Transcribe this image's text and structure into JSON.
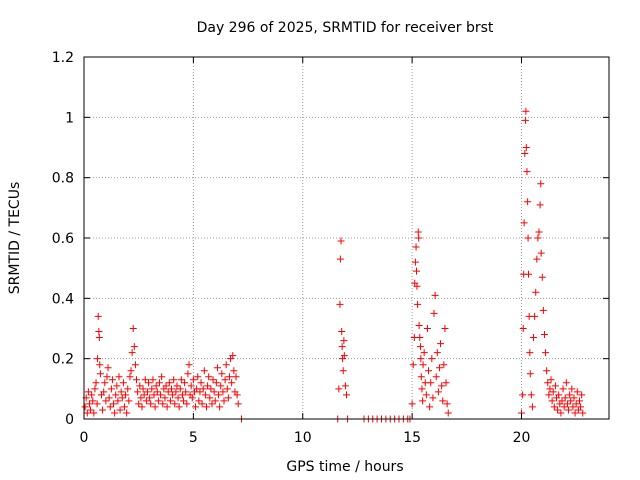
{
  "chart_data": {
    "type": "scatter",
    "title": "Day 296 of 2025, SRMTID for receiver brst",
    "xlabel": "GPS time / hours",
    "ylabel": "SRMTID / TECUs",
    "xlim": [
      0,
      24
    ],
    "ylim": [
      0,
      1.2
    ],
    "xticks": [
      0,
      5,
      10,
      15,
      20
    ],
    "xtick_labels": [
      "0",
      "5",
      "10",
      "15",
      "20"
    ],
    "yticks": [
      0,
      0.2,
      0.4,
      0.6,
      0.8,
      1,
      1.2
    ],
    "ytick_labels": [
      "0",
      "0.2",
      "0.4",
      "0.6",
      "0.8",
      "1",
      "1.2"
    ],
    "grid": true,
    "marker": "+",
    "series": [
      {
        "name": "SRMTID",
        "color": "#ff0000",
        "points": [
          [
            0.05,
            0.04
          ],
          [
            0.1,
            0.07
          ],
          [
            0.15,
            0.02
          ],
          [
            0.2,
            0.09
          ],
          [
            0.25,
            0.05
          ],
          [
            0.3,
            0.03
          ],
          [
            0.35,
            0.08
          ],
          [
            0.4,
            0.06
          ],
          [
            0.45,
            0.02
          ],
          [
            0.5,
            0.1
          ],
          [
            0.55,
            0.12
          ],
          [
            0.6,
            0.05
          ],
          [
            0.62,
            0.2
          ],
          [
            0.65,
            0.34
          ],
          [
            0.68,
            0.29
          ],
          [
            0.7,
            0.27
          ],
          [
            0.72,
            0.18
          ],
          [
            0.75,
            0.15
          ],
          [
            0.8,
            0.08
          ],
          [
            0.85,
            0.03
          ],
          [
            0.9,
            0.09
          ],
          [
            0.95,
            0.12
          ],
          [
            1.0,
            0.06
          ],
          [
            1.05,
            0.14
          ],
          [
            1.1,
            0.17
          ],
          [
            1.15,
            0.07
          ],
          [
            1.2,
            0.04
          ],
          [
            1.25,
            0.1
          ],
          [
            1.3,
            0.13
          ],
          [
            1.35,
            0.05
          ],
          [
            1.4,
            0.02
          ],
          [
            1.45,
            0.08
          ],
          [
            1.5,
            0.11
          ],
          [
            1.55,
            0.06
          ],
          [
            1.6,
            0.14
          ],
          [
            1.65,
            0.03
          ],
          [
            1.7,
            0.09
          ],
          [
            1.75,
            0.07
          ],
          [
            1.8,
            0.12
          ],
          [
            1.85,
            0.04
          ],
          [
            1.9,
            0.08
          ],
          [
            1.95,
            0.02
          ],
          [
            2.0,
            0.1
          ],
          [
            2.05,
            0.06
          ],
          [
            2.1,
            0.14
          ],
          [
            2.15,
            0.16
          ],
          [
            2.2,
            0.22
          ],
          [
            2.25,
            0.3
          ],
          [
            2.3,
            0.24
          ],
          [
            2.35,
            0.18
          ],
          [
            2.4,
            0.13
          ],
          [
            2.45,
            0.09
          ],
          [
            2.5,
            0.05
          ],
          [
            2.55,
            0.11
          ],
          [
            2.6,
            0.07
          ],
          [
            2.65,
            0.04
          ],
          [
            2.7,
            0.1
          ],
          [
            2.75,
            0.08
          ],
          [
            2.8,
            0.13
          ],
          [
            2.85,
            0.06
          ],
          [
            2.9,
            0.09
          ],
          [
            2.95,
            0.12
          ],
          [
            3.0,
            0.07
          ],
          [
            3.05,
            0.05
          ],
          [
            3.1,
            0.1
          ],
          [
            3.15,
            0.13
          ],
          [
            3.2,
            0.08
          ],
          [
            3.25,
            0.04
          ],
          [
            3.3,
            0.11
          ],
          [
            3.35,
            0.09
          ],
          [
            3.4,
            0.06
          ],
          [
            3.45,
            0.12
          ],
          [
            3.5,
            0.08
          ],
          [
            3.55,
            0.14
          ],
          [
            3.6,
            0.05
          ],
          [
            3.65,
            0.1
          ],
          [
            3.7,
            0.07
          ],
          [
            3.75,
            0.11
          ],
          [
            3.8,
            0.04
          ],
          [
            3.85,
            0.09
          ],
          [
            3.9,
            0.12
          ],
          [
            3.95,
            0.06
          ],
          [
            4.0,
            0.1
          ],
          [
            4.05,
            0.08
          ],
          [
            4.1,
            0.13
          ],
          [
            4.15,
            0.05
          ],
          [
            4.2,
            0.09
          ],
          [
            4.25,
            0.11
          ],
          [
            4.3,
            0.07
          ],
          [
            4.35,
            0.04
          ],
          [
            4.4,
            0.1
          ],
          [
            4.45,
            0.13
          ],
          [
            4.5,
            0.08
          ],
          [
            4.55,
            0.06
          ],
          [
            4.6,
            0.12
          ],
          [
            4.65,
            0.09
          ],
          [
            4.7,
            0.05
          ],
          [
            4.75,
            0.15
          ],
          [
            4.8,
            0.18
          ],
          [
            4.85,
            0.08
          ],
          [
            4.9,
            0.11
          ],
          [
            4.95,
            0.07
          ],
          [
            5.0,
            0.13
          ],
          [
            5.05,
            0.09
          ],
          [
            5.1,
            0.04
          ],
          [
            5.15,
            0.1
          ],
          [
            5.2,
            0.14
          ],
          [
            5.25,
            0.06
          ],
          [
            5.3,
            0.09
          ],
          [
            5.35,
            0.12
          ],
          [
            5.4,
            0.05
          ],
          [
            5.45,
            0.1
          ],
          [
            5.5,
            0.16
          ],
          [
            5.55,
            0.08
          ],
          [
            5.6,
            0.04
          ],
          [
            5.65,
            0.11
          ],
          [
            5.7,
            0.14
          ],
          [
            5.75,
            0.07
          ],
          [
            5.8,
            0.1
          ],
          [
            5.85,
            0.05
          ],
          [
            5.9,
            0.13
          ],
          [
            5.95,
            0.09
          ],
          [
            6.0,
            0.06
          ],
          [
            6.05,
            0.12
          ],
          [
            6.1,
            0.17
          ],
          [
            6.15,
            0.08
          ],
          [
            6.2,
            0.04
          ],
          [
            6.25,
            0.11
          ],
          [
            6.3,
            0.15
          ],
          [
            6.35,
            0.09
          ],
          [
            6.4,
            0.06
          ],
          [
            6.45,
            0.13
          ],
          [
            6.5,
            0.18
          ],
          [
            6.55,
            0.1
          ],
          [
            6.6,
            0.07
          ],
          [
            6.65,
            0.14
          ],
          [
            6.7,
            0.2
          ],
          [
            6.75,
            0.12
          ],
          [
            6.8,
            0.21
          ],
          [
            6.85,
            0.16
          ],
          [
            6.9,
            0.09
          ],
          [
            6.95,
            0.14
          ],
          [
            7.0,
            0.08
          ],
          [
            7.05,
            0.05
          ],
          [
            7.2,
            0.0
          ],
          [
            11.6,
            0.0
          ],
          [
            11.65,
            0.1
          ],
          [
            11.7,
            0.38
          ],
          [
            11.72,
            0.53
          ],
          [
            11.75,
            0.59
          ],
          [
            11.78,
            0.29
          ],
          [
            11.8,
            0.24
          ],
          [
            11.82,
            0.2
          ],
          [
            11.85,
            0.16
          ],
          [
            11.88,
            0.26
          ],
          [
            11.9,
            0.21
          ],
          [
            11.95,
            0.11
          ],
          [
            12.0,
            0.08
          ],
          [
            12.05,
            0.0
          ],
          [
            12.8,
            0.0
          ],
          [
            13.0,
            0.0
          ],
          [
            13.2,
            0.0
          ],
          [
            13.4,
            0.0
          ],
          [
            13.6,
            0.0
          ],
          [
            13.8,
            0.0
          ],
          [
            14.0,
            0.0
          ],
          [
            14.2,
            0.0
          ],
          [
            14.4,
            0.0
          ],
          [
            14.6,
            0.0
          ],
          [
            14.8,
            0.0
          ],
          [
            14.9,
            0.0
          ],
          [
            15.0,
            0.05
          ],
          [
            15.05,
            0.18
          ],
          [
            15.1,
            0.27
          ],
          [
            15.12,
            0.45
          ],
          [
            15.15,
            0.52
          ],
          [
            15.18,
            0.57
          ],
          [
            15.2,
            0.49
          ],
          [
            15.22,
            0.44
          ],
          [
            15.25,
            0.38
          ],
          [
            15.28,
            0.62
          ],
          [
            15.3,
            0.6
          ],
          [
            15.32,
            0.31
          ],
          [
            15.35,
            0.27
          ],
          [
            15.38,
            0.24
          ],
          [
            15.4,
            0.2
          ],
          [
            15.42,
            0.14
          ],
          [
            15.45,
            0.1
          ],
          [
            15.48,
            0.06
          ],
          [
            15.5,
            0.18
          ],
          [
            15.55,
            0.22
          ],
          [
            15.6,
            0.12
          ],
          [
            15.65,
            0.08
          ],
          [
            15.7,
            0.3
          ],
          [
            15.75,
            0.16
          ],
          [
            15.8,
            0.04
          ],
          [
            15.85,
            0.12
          ],
          [
            15.9,
            0.2
          ],
          [
            15.95,
            0.07
          ],
          [
            16.0,
            0.35
          ],
          [
            16.05,
            0.41
          ],
          [
            16.1,
            0.14
          ],
          [
            16.15,
            0.22
          ],
          [
            16.2,
            0.09
          ],
          [
            16.25,
            0.17
          ],
          [
            16.3,
            0.25
          ],
          [
            16.35,
            0.11
          ],
          [
            16.4,
            0.06
          ],
          [
            16.45,
            0.18
          ],
          [
            16.5,
            0.3
          ],
          [
            16.55,
            0.12
          ],
          [
            16.6,
            0.05
          ],
          [
            16.65,
            0.02
          ],
          [
            20.0,
            0.02
          ],
          [
            20.05,
            0.08
          ],
          [
            20.08,
            0.3
          ],
          [
            20.1,
            0.48
          ],
          [
            20.12,
            0.65
          ],
          [
            20.15,
            0.88
          ],
          [
            20.18,
            0.99
          ],
          [
            20.2,
            1.02
          ],
          [
            20.22,
            0.9
          ],
          [
            20.25,
            0.82
          ],
          [
            20.28,
            0.72
          ],
          [
            20.3,
            0.6
          ],
          [
            20.32,
            0.48
          ],
          [
            20.35,
            0.34
          ],
          [
            20.38,
            0.22
          ],
          [
            20.4,
            0.15
          ],
          [
            20.45,
            0.08
          ],
          [
            20.5,
            0.04
          ],
          [
            20.55,
            0.27
          ],
          [
            20.6,
            0.34
          ],
          [
            20.65,
            0.42
          ],
          [
            20.7,
            0.53
          ],
          [
            20.75,
            0.6
          ],
          [
            20.8,
            0.62
          ],
          [
            20.85,
            0.71
          ],
          [
            20.88,
            0.78
          ],
          [
            20.9,
            0.55
          ],
          [
            20.95,
            0.47
          ],
          [
            21.0,
            0.36
          ],
          [
            21.05,
            0.28
          ],
          [
            21.1,
            0.22
          ],
          [
            21.15,
            0.16
          ],
          [
            21.2,
            0.12
          ],
          [
            21.25,
            0.08
          ],
          [
            21.3,
            0.1
          ],
          [
            21.35,
            0.13
          ],
          [
            21.4,
            0.06
          ],
          [
            21.45,
            0.09
          ],
          [
            21.5,
            0.04
          ],
          [
            21.55,
            0.11
          ],
          [
            21.6,
            0.07
          ],
          [
            21.65,
            0.03
          ],
          [
            21.7,
            0.08
          ],
          [
            21.75,
            0.05
          ],
          [
            21.8,
            0.02
          ],
          [
            21.85,
            0.06
          ],
          [
            21.9,
            0.1
          ],
          [
            21.95,
            0.04
          ],
          [
            22.0,
            0.07
          ],
          [
            22.05,
            0.12
          ],
          [
            22.1,
            0.05
          ],
          [
            22.15,
            0.03
          ],
          [
            22.2,
            0.08
          ],
          [
            22.25,
            0.06
          ],
          [
            22.3,
            0.1
          ],
          [
            22.35,
            0.04
          ],
          [
            22.4,
            0.07
          ],
          [
            22.45,
            0.02
          ],
          [
            22.5,
            0.05
          ],
          [
            22.55,
            0.09
          ],
          [
            22.6,
            0.03
          ],
          [
            22.65,
            0.06
          ],
          [
            22.7,
            0.04
          ],
          [
            22.75,
            0.08
          ],
          [
            22.8,
            0.02
          ]
        ]
      }
    ]
  }
}
